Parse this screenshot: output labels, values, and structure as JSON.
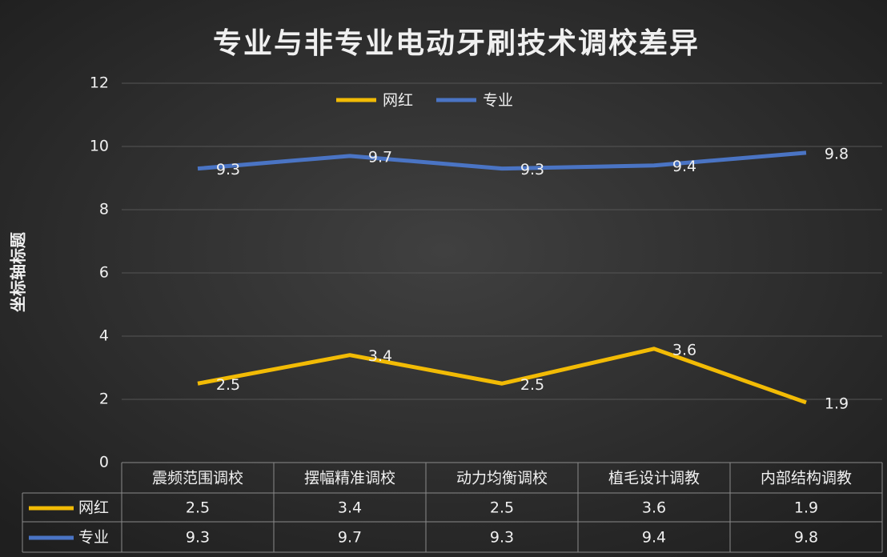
{
  "chart_data": {
    "type": "line",
    "title": "专业与非专业电动牙刷技术调校差异",
    "y_axis_label": "坐标轴标题",
    "categories": [
      "震频范围调校",
      "摆幅精准调校",
      "动力均衡调校",
      "植毛设计调教",
      "内部结构调教"
    ],
    "series": [
      {
        "name": "网红",
        "color": "#f2bb05",
        "values": [
          2.5,
          3.4,
          2.5,
          3.6,
          1.9
        ]
      },
      {
        "name": "专业",
        "color": "#4a74c4",
        "values": [
          9.3,
          9.7,
          9.3,
          9.4,
          9.8
        ]
      }
    ],
    "ylim": [
      0,
      12
    ],
    "yticks": [
      0,
      2,
      4,
      6,
      8,
      10,
      12
    ],
    "grid": true,
    "legend": "top",
    "data_table": true
  }
}
